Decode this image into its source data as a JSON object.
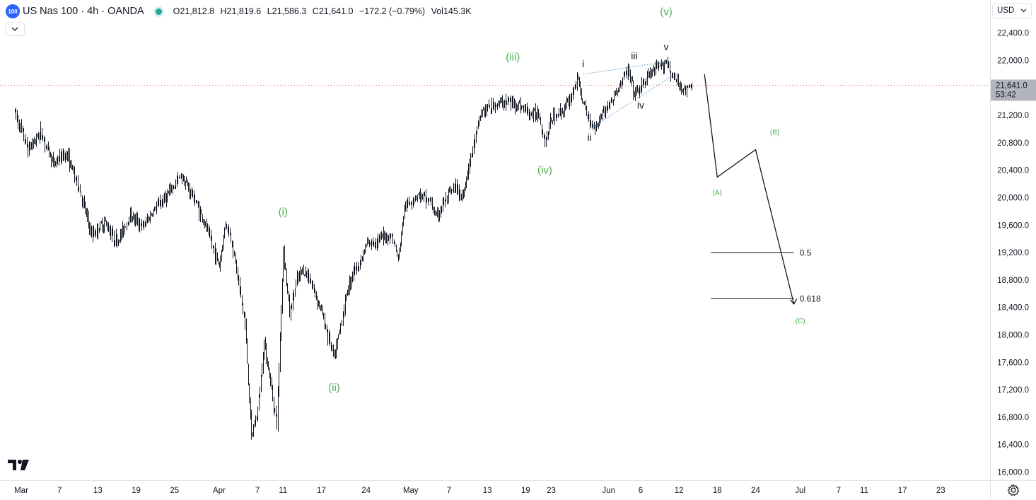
{
  "header": {
    "symbol_badge": "100",
    "title": "US Nas 100 · 4h · OANDA",
    "open": "O21,812.8",
    "high": "H21,819.6",
    "low": "L21,586.3",
    "close": "C21,641.0",
    "change": "−172.2 (−0.79%)",
    "volume": "Vol145.3K"
  },
  "currency_selector": {
    "value": "USD"
  },
  "colors": {
    "wave_green": "#4caf50",
    "price_line": "#f23645",
    "last_price_bg": "#b2b5be",
    "text": "#131722"
  },
  "icons": {
    "collapse": "chevron-down-icon",
    "currency_dropdown": "chevron-down-icon",
    "logo": "tradingview-logo-icon",
    "settings": "gear-icon"
  },
  "chart_data": {
    "type": "candlestick",
    "timeframe": "4h",
    "ylim": [
      15900,
      22500
    ],
    "y_ticks": [
      16000,
      16400,
      16800,
      17200,
      17600,
      18000,
      18400,
      18800,
      19200,
      19600,
      20000,
      20400,
      20800,
      21200,
      21600,
      22000,
      22400
    ],
    "y_tick_labels": [
      "16,000.0",
      "16,400.0",
      "16,800.0",
      "17,200.0",
      "17,600.0",
      "18,000.0",
      "18,400.0",
      "18,800.0",
      "19,200.0",
      "19,600.0",
      "20,000.0",
      "20,400.0",
      "20,800.0",
      "21,200.0",
      "21,600.0",
      "22,000.0",
      "22,400.0"
    ],
    "x_axis_labels": [
      "Mar",
      "7",
      "13",
      "19",
      "25",
      "Apr",
      "7",
      "11",
      "17",
      "24",
      "May",
      "7",
      "13",
      "19",
      "23",
      "Jun",
      "6",
      "12",
      "18",
      "24",
      "Jul",
      "7",
      "11",
      "17",
      "23"
    ],
    "x_axis_days": [
      1,
      7,
      13,
      19,
      25,
      32,
      38,
      42,
      48,
      55,
      62,
      68,
      74,
      80,
      84,
      93,
      98,
      104,
      110,
      116,
      123,
      129,
      133,
      139,
      145
    ],
    "last_price": {
      "value": 21641.0,
      "label": "21,641.0",
      "countdown": "53:42"
    },
    "price_path": [
      {
        "day": 0,
        "price": 21250
      },
      {
        "day": 2,
        "price": 20700
      },
      {
        "day": 4,
        "price": 20950
      },
      {
        "day": 6,
        "price": 20500
      },
      {
        "day": 8,
        "price": 20650
      },
      {
        "day": 10,
        "price": 20150
      },
      {
        "day": 12,
        "price": 19450
      },
      {
        "day": 14,
        "price": 19650
      },
      {
        "day": 16,
        "price": 19350
      },
      {
        "day": 18,
        "price": 19750
      },
      {
        "day": 20,
        "price": 19580
      },
      {
        "day": 22,
        "price": 19850
      },
      {
        "day": 24,
        "price": 20050
      },
      {
        "day": 26,
        "price": 20330
      },
      {
        "day": 28,
        "price": 20000
      },
      {
        "day": 30,
        "price": 19550
      },
      {
        "day": 32,
        "price": 19000
      },
      {
        "day": 33,
        "price": 19650
      },
      {
        "day": 34,
        "price": 19350
      },
      {
        "day": 35,
        "price": 18750
      },
      {
        "day": 36,
        "price": 18150
      },
      {
        "day": 37,
        "price": 16500
      },
      {
        "day": 38,
        "price": 16900
      },
      {
        "day": 39,
        "price": 17900
      },
      {
        "day": 40,
        "price": 17300
      },
      {
        "day": 41,
        "price": 16700
      },
      {
        "day": 42,
        "price": 19250
      },
      {
        "day": 43,
        "price": 18300
      },
      {
        "day": 44,
        "price": 18750
      },
      {
        "day": 45,
        "price": 18950
      },
      {
        "day": 46,
        "price": 18850
      },
      {
        "day": 47,
        "price": 18600
      },
      {
        "day": 48,
        "price": 18350
      },
      {
        "day": 49,
        "price": 18000
      },
      {
        "day": 50,
        "price": 17650
      },
      {
        "day": 51,
        "price": 18150
      },
      {
        "day": 52,
        "price": 18650
      },
      {
        "day": 53,
        "price": 18950
      },
      {
        "day": 54,
        "price": 19050
      },
      {
        "day": 55,
        "price": 19300
      },
      {
        "day": 57,
        "price": 19400
      },
      {
        "day": 59,
        "price": 19450
      },
      {
        "day": 60,
        "price": 19100
      },
      {
        "day": 61,
        "price": 19850
      },
      {
        "day": 63,
        "price": 20050
      },
      {
        "day": 65,
        "price": 19950
      },
      {
        "day": 66,
        "price": 19700
      },
      {
        "day": 67,
        "price": 19900
      },
      {
        "day": 68,
        "price": 20050
      },
      {
        "day": 69,
        "price": 20150
      },
      {
        "day": 70,
        "price": 20000
      },
      {
        "day": 71,
        "price": 20450
      },
      {
        "day": 72,
        "price": 20850
      },
      {
        "day": 73,
        "price": 21250
      },
      {
        "day": 75,
        "price": 21350
      },
      {
        "day": 77,
        "price": 21400
      },
      {
        "day": 79,
        "price": 21350
      },
      {
        "day": 81,
        "price": 21200
      },
      {
        "day": 82,
        "price": 21250
      },
      {
        "day": 83,
        "price": 20800
      },
      {
        "day": 84,
        "price": 21150
      },
      {
        "day": 86,
        "price": 21300
      },
      {
        "day": 87,
        "price": 21450
      },
      {
        "day": 88,
        "price": 21750
      },
      {
        "day": 89,
        "price": 21350
      },
      {
        "day": 90,
        "price": 21100
      },
      {
        "day": 91,
        "price": 21050
      },
      {
        "day": 92,
        "price": 21250
      },
      {
        "day": 93,
        "price": 21350
      },
      {
        "day": 94,
        "price": 21500
      },
      {
        "day": 95,
        "price": 21700
      },
      {
        "day": 96,
        "price": 21850
      },
      {
        "day": 97,
        "price": 21500
      },
      {
        "day": 98,
        "price": 21600
      },
      {
        "day": 99,
        "price": 21750
      },
      {
        "day": 100,
        "price": 21850
      },
      {
        "day": 101,
        "price": 21900
      },
      {
        "day": 102,
        "price": 22000
      },
      {
        "day": 103,
        "price": 21750
      },
      {
        "day": 104,
        "price": 21650
      },
      {
        "day": 105,
        "price": 21550
      },
      {
        "day": 106,
        "price": 21650
      }
    ],
    "wave_labels": [
      {
        "text": "(i)",
        "day": 42,
        "price": 19740,
        "color": "green"
      },
      {
        "text": "(ii)",
        "day": 50,
        "price": 17180,
        "color": "green"
      },
      {
        "text": "(iii)",
        "day": 78,
        "price": 22000,
        "color": "green"
      },
      {
        "text": "(iv)",
        "day": 83,
        "price": 20350,
        "color": "green"
      },
      {
        "text": "(v)",
        "day": 102,
        "price": 22660,
        "color": "green"
      },
      {
        "text": "i",
        "day": 89,
        "price": 21900,
        "color": "black"
      },
      {
        "text": "ii",
        "day": 90,
        "price": 20830,
        "color": "black"
      },
      {
        "text": "iii",
        "day": 97,
        "price": 22020,
        "color": "black"
      },
      {
        "text": "iv",
        "day": 98,
        "price": 21300,
        "color": "black"
      },
      {
        "text": "v",
        "day": 102,
        "price": 22150,
        "color": "black"
      },
      {
        "text": "(A)",
        "day": 110,
        "price": 20040,
        "color": "green"
      },
      {
        "text": "(B)",
        "day": 119,
        "price": 20920,
        "color": "green"
      },
      {
        "text": "(C)",
        "day": 123,
        "price": 18170,
        "color": "green"
      }
    ],
    "projection_path": [
      {
        "day": 108,
        "price": 21800
      },
      {
        "day": 110,
        "price": 20300
      },
      {
        "day": 116,
        "price": 20700
      },
      {
        "day": 122,
        "price": 18450
      }
    ],
    "fib_levels": [
      {
        "label": "0.5",
        "price": 19200,
        "day_start": 109,
        "day_end": 122
      },
      {
        "label": "0.618",
        "price": 18530,
        "day_start": 109,
        "day_end": 122
      }
    ],
    "wedge_lines": [
      [
        {
          "day": 89,
          "price": 21800
        },
        {
          "day": 102,
          "price": 21980
        }
      ],
      [
        {
          "day": 90,
          "price": 21000
        },
        {
          "day": 103,
          "price": 21780
        }
      ]
    ]
  }
}
